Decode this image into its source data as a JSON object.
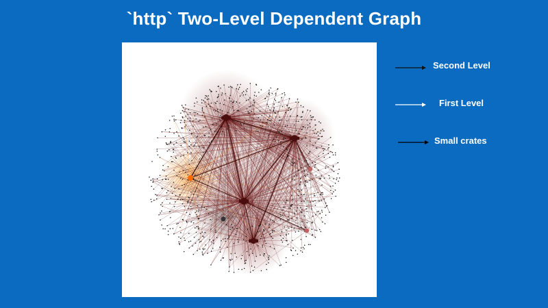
{
  "title": "`http` Two-Level Dependent Graph",
  "legend": {
    "second_level": "Second Level",
    "first_level": "First Level",
    "small_crates": "Small crates"
  },
  "colors": {
    "background": "#0a6bc0",
    "panel": "#ffffff",
    "second_level_edge": "#5a1010",
    "first_level_edge": "#ffffff",
    "small_crates_arrow": "#000000",
    "highlight": "#ff6a00"
  }
}
